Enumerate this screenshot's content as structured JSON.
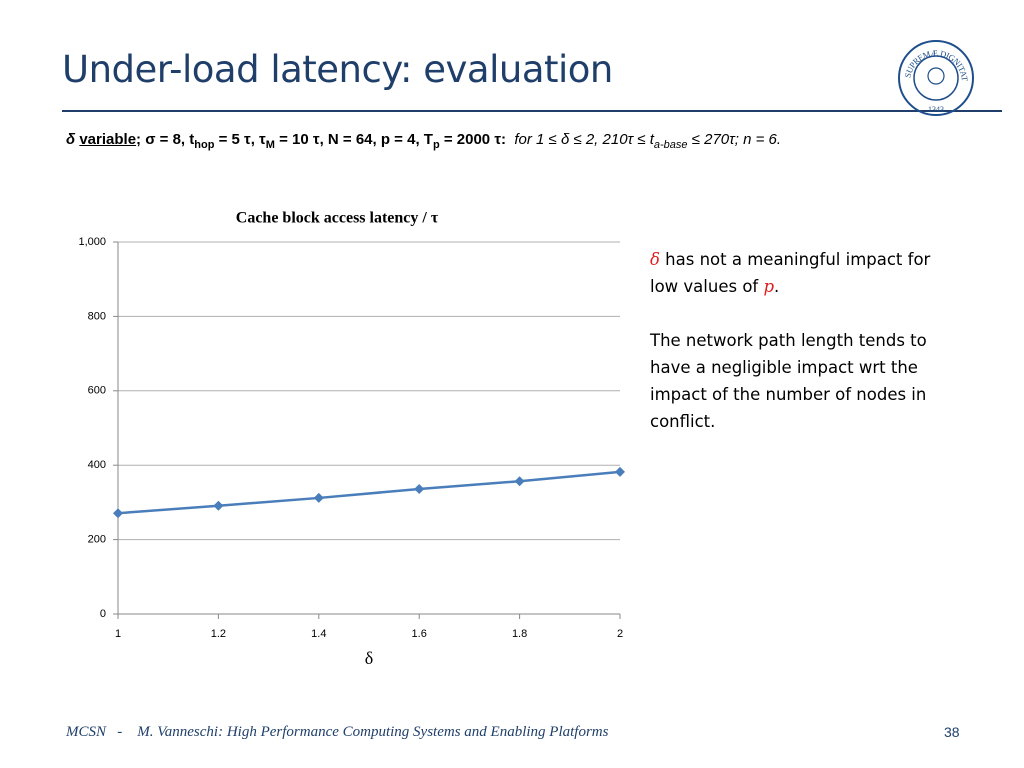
{
  "header": {
    "title": "Under-load latency: evaluation"
  },
  "logo": {
    "motto": "IN SUPREMÆ DIGNITATIS",
    "year": "1343"
  },
  "params": [
    "δ",
    "variable",
    "; σ = 8, t",
    "hop",
    " = 5 τ, τ",
    "M",
    " = 10 τ, N = 64, p = 4, T",
    "p",
    " = 2000 τ:",
    "for 1 ≤ δ ≤ 2, 210τ ≤ t",
    "a-base",
    " ≤ 270τ; n = 6."
  ],
  "notes": {
    "first": [
      "δ",
      " has not a meaningful impact for low values of ",
      "p",
      "."
    ],
    "second": "The network path length tends to have a negligible impact wrt the impact of the number of nodes in conflict."
  },
  "chart_data": {
    "type": "line",
    "title": "Cache block access latency / τ",
    "x_label": "δ",
    "x": [
      1,
      1.2,
      1.4,
      1.6,
      1.8,
      2
    ],
    "values": [
      271,
      291,
      312,
      336,
      357,
      382
    ],
    "color": "#4a7ebb",
    "xlim": [
      1,
      2
    ],
    "xticks": [
      1,
      1.2,
      1.4,
      1.6,
      1.8,
      2
    ],
    "ylim": [
      0,
      1000
    ],
    "yticks": [
      0,
      200,
      400,
      600,
      800,
      {
        "value": 1000,
        "label": "1,000"
      }
    ],
    "grid": true
  },
  "footer": {
    "course": "MCSN",
    "separator": "-",
    "text": "M. Vanneschi: High Performance Computing Systems and Enabling Platforms",
    "page": "38"
  }
}
